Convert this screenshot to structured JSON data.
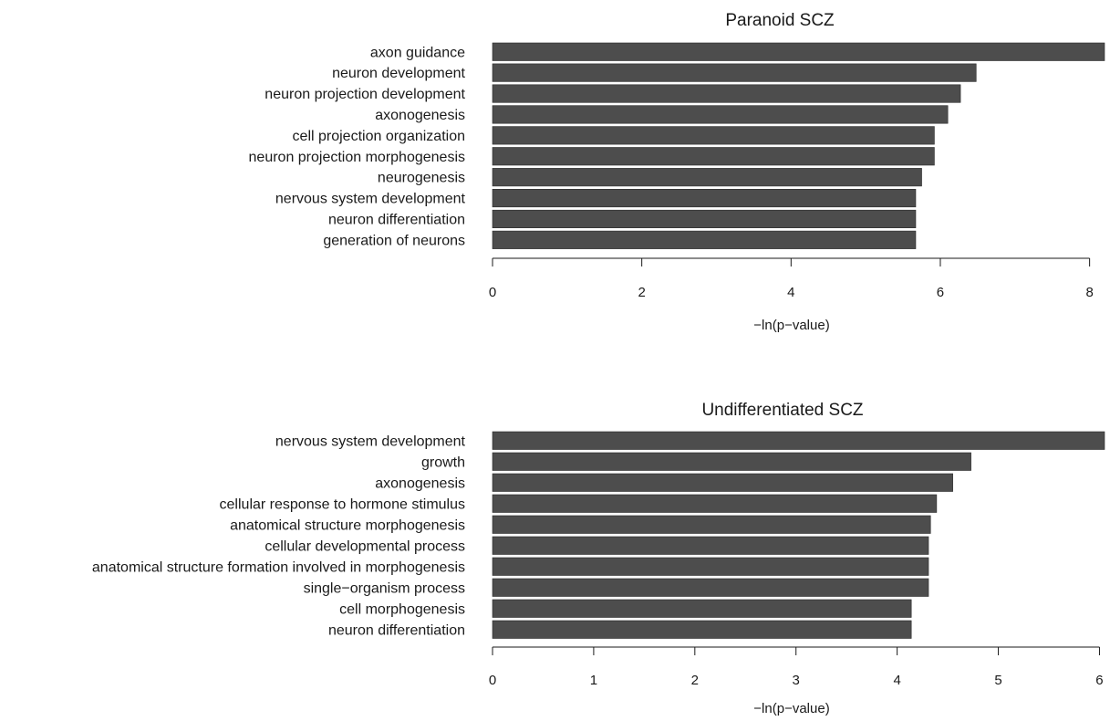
{
  "colors": {
    "bar": "#4d4d4d",
    "text": "#1a1a1a",
    "background": "#ffffff"
  },
  "chart_data": [
    {
      "type": "bar",
      "orientation": "horizontal",
      "title": "Paranoid SCZ",
      "xlabel": "−ln(p−value)",
      "ylabel": "",
      "xlim": [
        0,
        8.2
      ],
      "ticks": [
        0,
        2,
        4,
        6,
        8
      ],
      "tick_labels": [
        "0",
        "2",
        "4",
        "6",
        "8"
      ],
      "categories": [
        "axon guidance",
        "neuron development",
        "neuron projection development",
        "axonogenesis",
        "cell projection organization",
        "neuron projection morphogenesis",
        "neurogenesis",
        "nervous system development",
        "neuron differentiation",
        "generation of neurons"
      ],
      "values": [
        8.2,
        6.48,
        6.27,
        6.1,
        5.92,
        5.92,
        5.75,
        5.67,
        5.67,
        5.67
      ],
      "grid": false,
      "legend": "none"
    },
    {
      "type": "bar",
      "orientation": "horizontal",
      "title": "Undifferentiated SCZ",
      "xlabel": "−ln(p−value)",
      "ylabel": "",
      "xlim": [
        0,
        6.05
      ],
      "ticks": [
        0,
        1,
        2,
        3,
        4,
        5,
        6
      ],
      "tick_labels": [
        "0",
        "1",
        "2",
        "3",
        "4",
        "5",
        "6"
      ],
      "categories": [
        "nervous system development",
        "growth",
        "axonogenesis",
        "cellular response to hormone stimulus",
        "anatomical structure morphogenesis",
        "cellular developmental process",
        "anatomical structure formation involved in morphogenesis",
        "single−organism process",
        "cell morphogenesis",
        "neuron differentiation"
      ],
      "values": [
        6.05,
        4.73,
        4.55,
        4.39,
        4.33,
        4.31,
        4.31,
        4.31,
        4.14,
        4.14
      ],
      "grid": false,
      "legend": "none"
    }
  ]
}
